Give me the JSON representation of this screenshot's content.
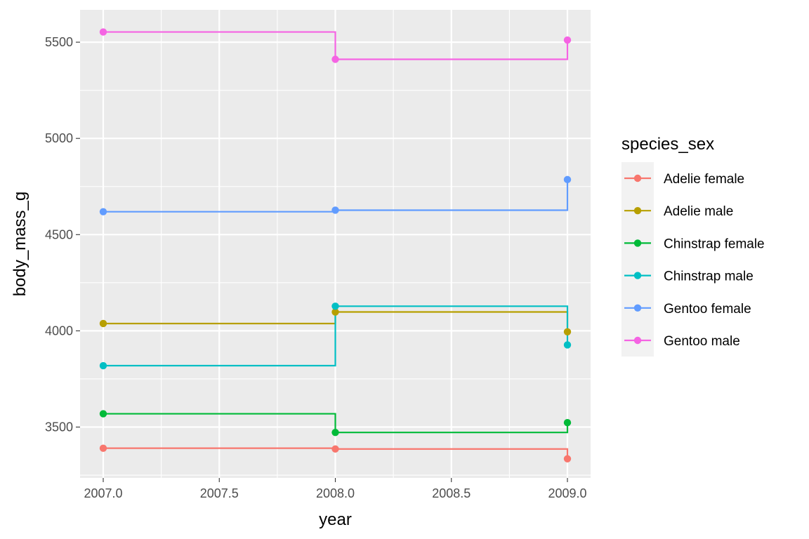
{
  "chart_data": {
    "type": "line",
    "step": true,
    "title": "",
    "xlabel": "year",
    "ylabel": "body_mass_g",
    "xlim": [
      1996.95,
      2009.05
    ],
    "ylim": [
      3260,
      5615
    ],
    "x_ticks": [
      2007.0,
      2007.5,
      2008.0,
      2008.5,
      2009.0
    ],
    "x_tick_labels": [
      "2007.0",
      "2007.5",
      "2008.0",
      "2008.5",
      "2009.0"
    ],
    "y_ticks": [
      3500,
      4000,
      4500,
      5000,
      5500
    ],
    "y_tick_labels": [
      "3500",
      "4000",
      "4500",
      "5000",
      "5500"
    ],
    "grid": true,
    "legend": {
      "title": "species_sex",
      "placement": "right"
    },
    "x": [
      2007,
      2008,
      2009
    ],
    "series": [
      {
        "name": "Adelie female",
        "color": "#F8766D",
        "values": [
          3390,
          3386,
          3335
        ]
      },
      {
        "name": "Adelie male",
        "color": "#B79F00",
        "values": [
          4038,
          4098,
          3995
        ]
      },
      {
        "name": "Chinstrap female",
        "color": "#00BA38",
        "values": [
          3569,
          3472,
          3523
        ]
      },
      {
        "name": "Chinstrap male",
        "color": "#00BFC4",
        "values": [
          3819,
          4128,
          3927
        ]
      },
      {
        "name": "Gentoo female",
        "color": "#619CFF",
        "values": [
          4619,
          4627,
          4786
        ]
      },
      {
        "name": "Gentoo male",
        "color": "#F564E3",
        "values": [
          5553,
          5411,
          5511
        ]
      }
    ]
  }
}
